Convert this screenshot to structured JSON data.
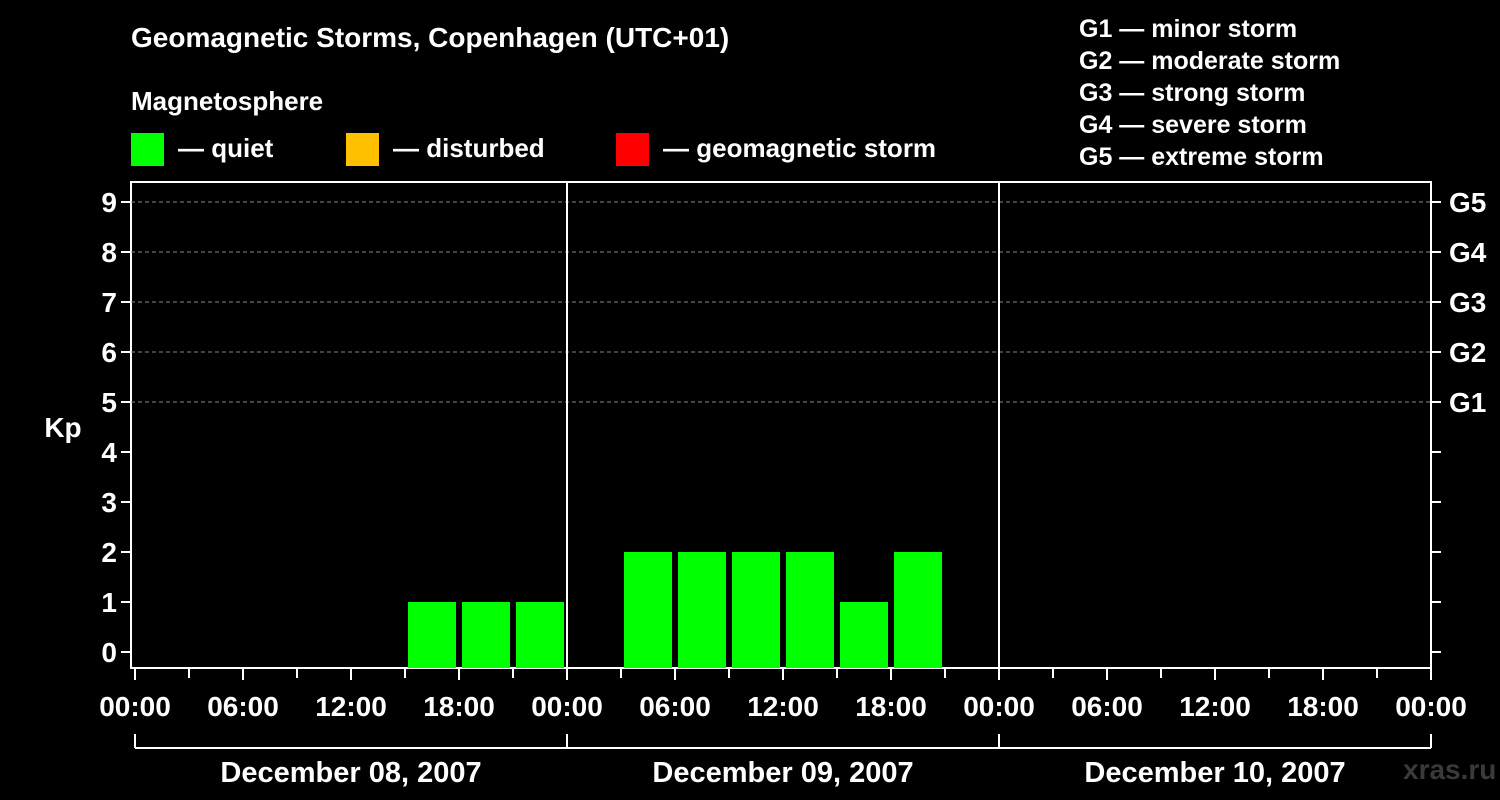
{
  "title": "Geomagnetic Storms, Copenhagen (UTC+01)",
  "subtitle": "Magnetosphere",
  "legend": [
    {
      "label": "— quiet",
      "color": "#00ff00"
    },
    {
      "label": "— disturbed",
      "color": "#ffc000"
    },
    {
      "label": "— geomagnetic storm",
      "color": "#ff0000"
    }
  ],
  "storm_scale": [
    "G1 — minor storm",
    "G2 — moderate storm",
    "G3 — strong storm",
    "G4 — severe storm",
    "G5 — extreme storm"
  ],
  "watermark": "xras.ru",
  "chart_data": {
    "type": "bar",
    "title": "Geomagnetic Storms, Copenhagen (UTC+01)",
    "ylabel": "Kp",
    "ylim": [
      0,
      9
    ],
    "y_ticks": [
      "0",
      "1",
      "2",
      "3",
      "4",
      "5",
      "6",
      "7",
      "8",
      "9"
    ],
    "right_axis_labels": [
      {
        "kp": 5,
        "label": "G1"
      },
      {
        "kp": 6,
        "label": "G2"
      },
      {
        "kp": 7,
        "label": "G3"
      },
      {
        "kp": 8,
        "label": "G4"
      },
      {
        "kp": 9,
        "label": "G5"
      }
    ],
    "x_range_hours": [
      0,
      72
    ],
    "x_tick_labels": [
      "00:00",
      "06:00",
      "12:00",
      "18:00",
      "00:00",
      "06:00",
      "12:00",
      "18:00",
      "00:00",
      "06:00",
      "12:00",
      "18:00",
      "00:00"
    ],
    "days": [
      "December 08, 2007",
      "December 09, 2007",
      "December 10, 2007"
    ],
    "interval_hours": 3,
    "bar_start_hours": [
      15,
      18,
      21,
      27,
      30,
      33,
      36,
      39,
      42
    ],
    "values": [
      1,
      1,
      1,
      2,
      2,
      2,
      2,
      1,
      2
    ],
    "bar_status": [
      "quiet",
      "quiet",
      "quiet",
      "quiet",
      "quiet",
      "quiet",
      "quiet",
      "quiet",
      "quiet"
    ],
    "status_colors": {
      "quiet": "#00ff00",
      "disturbed": "#ffc000",
      "storm": "#ff0000"
    },
    "grid": "dashed at Kp 5-9"
  }
}
